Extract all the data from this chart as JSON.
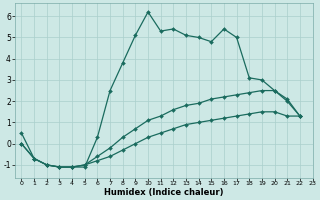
{
  "xlabel": "Humidex (Indice chaleur)",
  "ylabel": "",
  "background_color": "#cde8e5",
  "grid_color": "#aacfcc",
  "line_color": "#1a6b5e",
  "xlim": [
    -0.5,
    23
  ],
  "ylim": [
    -1.6,
    6.6
  ],
  "yticks": [
    -1,
    0,
    1,
    2,
    3,
    4,
    5,
    6
  ],
  "xticks": [
    0,
    1,
    2,
    3,
    4,
    5,
    6,
    7,
    8,
    9,
    10,
    11,
    12,
    13,
    14,
    15,
    16,
    17,
    18,
    19,
    20,
    21,
    22,
    23
  ],
  "series1_x": [
    0,
    1,
    2,
    3,
    4,
    5,
    6,
    7,
    8,
    9,
    10,
    11,
    12,
    13,
    14,
    15,
    16,
    17,
    18,
    19,
    20,
    21,
    22
  ],
  "series1_y": [
    0.5,
    -0.7,
    -1.0,
    -1.1,
    -1.1,
    -1.1,
    0.3,
    2.5,
    3.8,
    5.1,
    6.2,
    5.3,
    5.4,
    5.1,
    5.0,
    4.8,
    5.4,
    5.0,
    3.1,
    3.0,
    2.5,
    2.0,
    1.3
  ],
  "series2_x": [
    0,
    1,
    2,
    3,
    4,
    5,
    6,
    7,
    8,
    9,
    10,
    11,
    12,
    13,
    14,
    15,
    16,
    17,
    18,
    19,
    20,
    21,
    22
  ],
  "series2_y": [
    0.0,
    -0.7,
    -1.0,
    -1.1,
    -1.1,
    -1.0,
    -0.6,
    -0.2,
    0.3,
    0.7,
    1.1,
    1.3,
    1.6,
    1.8,
    1.9,
    2.1,
    2.2,
    2.3,
    2.4,
    2.5,
    2.5,
    2.1,
    1.3
  ],
  "series3_x": [
    0,
    1,
    2,
    3,
    4,
    5,
    6,
    7,
    8,
    9,
    10,
    11,
    12,
    13,
    14,
    15,
    16,
    17,
    18,
    19,
    20,
    21,
    22
  ],
  "series3_y": [
    0.0,
    -0.7,
    -1.0,
    -1.1,
    -1.1,
    -1.0,
    -0.8,
    -0.6,
    -0.3,
    0.0,
    0.3,
    0.5,
    0.7,
    0.9,
    1.0,
    1.1,
    1.2,
    1.3,
    1.4,
    1.5,
    1.5,
    1.3,
    1.3
  ]
}
